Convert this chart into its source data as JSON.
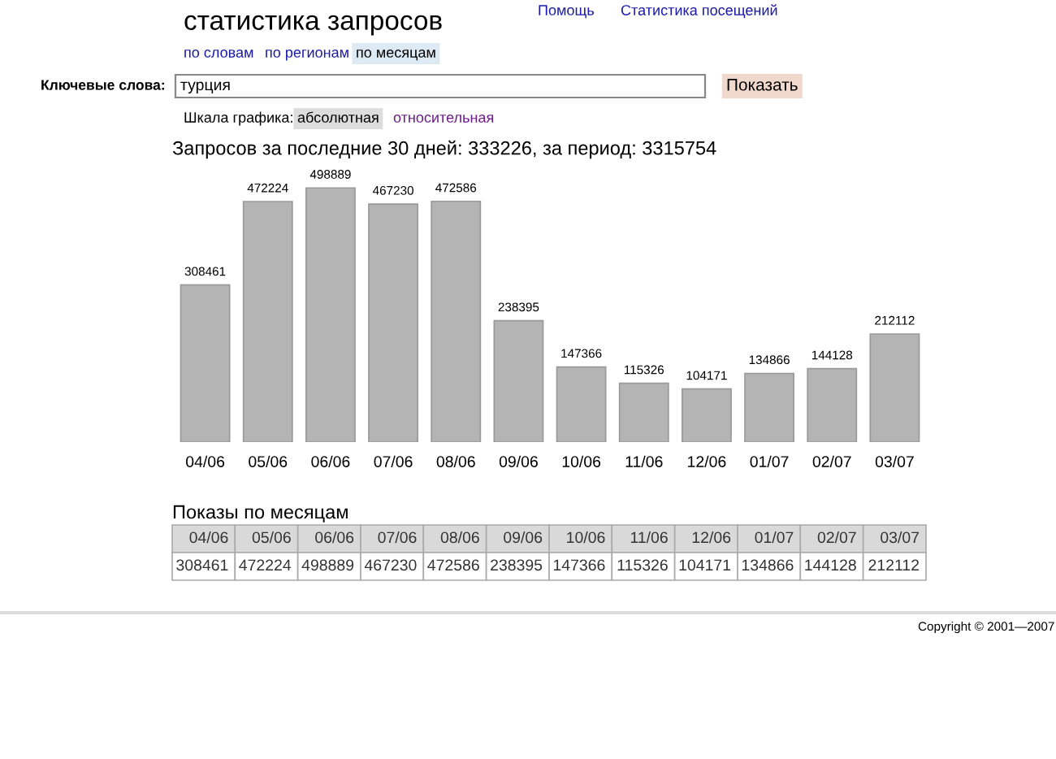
{
  "chart_data": {
    "type": "bar",
    "title": "статистика запросов",
    "subtitle": "Запросов за последние 30 дней: 333226, за период: 3315754",
    "categories": [
      "04/06",
      "05/06",
      "06/06",
      "07/06",
      "08/06",
      "09/06",
      "10/06",
      "11/06",
      "12/06",
      "01/07",
      "02/07",
      "03/07"
    ],
    "values": [
      308461,
      472224,
      498889,
      467230,
      472586,
      238395,
      147366,
      115326,
      104171,
      134866,
      144128,
      212112
    ],
    "value_labels": [
      "308461",
      "472224",
      "498889",
      "467230",
      "472586",
      "238395",
      "147366",
      "115326",
      "104171",
      "134866",
      "144128",
      "212112"
    ],
    "color": "#b4b4b4",
    "data_labels": true,
    "grid": false,
    "legend": false,
    "annotations": [
      "Помощь",
      "Статистика посещений",
      "по словам",
      "по регионам",
      "по месяцам",
      "Ключевые слова:",
      "турция",
      "Показать",
      "Шкала графика:",
      "абсолютная",
      "относительная",
      "Показы по месяцам",
      "Copyright © 2001—2007"
    ]
  }
}
